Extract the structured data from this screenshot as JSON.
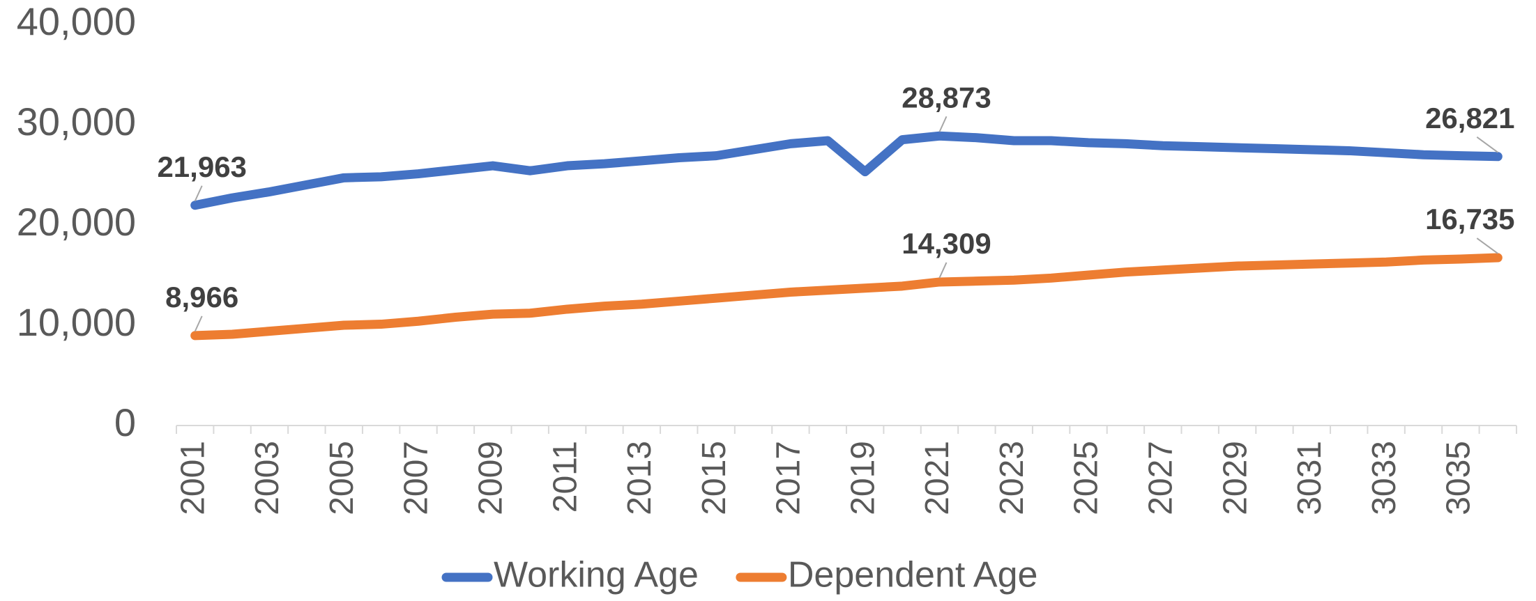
{
  "chart_data": {
    "type": "line",
    "categories": [
      "2001",
      null,
      "2003",
      null,
      "2005",
      null,
      "2007",
      null,
      "2009",
      null,
      "2011",
      null,
      "2013",
      null,
      "2015",
      null,
      "2017",
      null,
      "2019",
      null,
      "2021",
      null,
      "2023",
      null,
      "2025",
      null,
      "2027",
      null,
      "2029",
      null,
      "3031",
      null,
      "3033",
      null,
      "3035",
      null
    ],
    "series": [
      {
        "name": "Working Age",
        "color": "#4472c4",
        "values": [
          21963,
          22700,
          23300,
          24000,
          24700,
          24800,
          25100,
          25500,
          25900,
          25400,
          25900,
          26100,
          26400,
          26700,
          26900,
          27500,
          28100,
          28400,
          25300,
          28500,
          28873,
          28700,
          28400,
          28400,
          28200,
          28100,
          27900,
          27800,
          27700,
          27600,
          27500,
          27400,
          27200,
          27000,
          26900,
          26821
        ],
        "value_labels": [
          "21,963",
          null,
          null,
          null,
          null,
          null,
          null,
          null,
          null,
          null,
          null,
          null,
          null,
          null,
          null,
          null,
          null,
          null,
          null,
          null,
          "28,873",
          null,
          null,
          null,
          null,
          null,
          null,
          null,
          null,
          null,
          null,
          null,
          null,
          null,
          null,
          "26,821"
        ]
      },
      {
        "name": "Dependent Age",
        "color": "#ed7d31",
        "values": [
          8966,
          9100,
          9400,
          9700,
          10000,
          10100,
          10400,
          10800,
          11100,
          11200,
          11600,
          11900,
          12100,
          12400,
          12700,
          13000,
          13300,
          13500,
          13700,
          13900,
          14309,
          14400,
          14500,
          14700,
          15000,
          15300,
          15500,
          15700,
          15900,
          16000,
          16100,
          16200,
          16300,
          16500,
          16600,
          16735
        ],
        "value_labels": [
          "8,966",
          null,
          null,
          null,
          null,
          null,
          null,
          null,
          null,
          null,
          null,
          null,
          null,
          null,
          null,
          null,
          null,
          null,
          null,
          null,
          "14,309",
          null,
          null,
          null,
          null,
          null,
          null,
          null,
          null,
          null,
          null,
          null,
          null,
          null,
          null,
          "16,735"
        ]
      }
    ],
    "ylim": [
      0,
      40000
    ],
    "yticks": [
      0,
      {
        "value": 10000,
        "label": "10,000"
      },
      {
        "value": 20000,
        "label": "20,000"
      },
      {
        "value": 30000,
        "label": "30,000"
      },
      {
        "value": 40000,
        "label": "40,000"
      }
    ],
    "grid": false,
    "legend": "bottom"
  }
}
